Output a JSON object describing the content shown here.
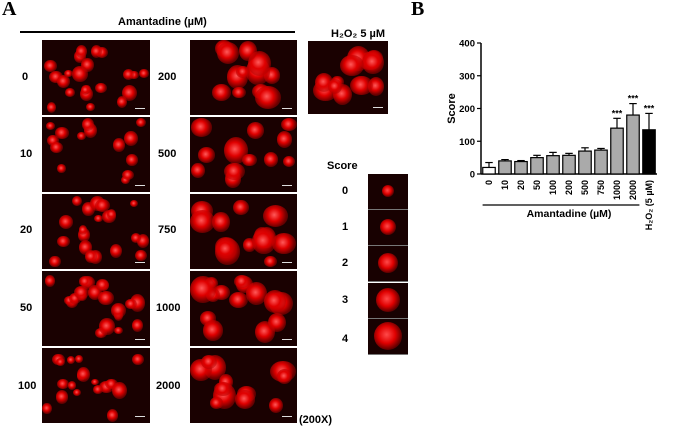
{
  "panel_a": {
    "letter": "A",
    "header": "Amantadine (µM)",
    "h2o2_label": "H₂O₂ 5 µM",
    "col1_doses": [
      "0",
      "10",
      "20",
      "50",
      "100"
    ],
    "col2_doses": [
      "200",
      "500",
      "750",
      "1000",
      "2000"
    ],
    "score_title": "Score",
    "score_levels": [
      "0",
      "1",
      "2",
      "3",
      "4"
    ],
    "magnification": "(200X)"
  },
  "panel_b": {
    "letter": "B"
  },
  "chart_data": {
    "type": "bar",
    "categories": [
      "0",
      "10",
      "20",
      "50",
      "100",
      "200",
      "500",
      "750",
      "1000",
      "2000",
      "H₂O₂ (5 µM)"
    ],
    "values": [
      20,
      40,
      38,
      50,
      56,
      57,
      70,
      73,
      140,
      180,
      135
    ],
    "errors": [
      15,
      4,
      3,
      7,
      10,
      6,
      10,
      5,
      30,
      35,
      50
    ],
    "annotations": [
      "",
      "",
      "",
      "",
      "",
      "",
      "",
      "",
      "***",
      "***",
      "***"
    ],
    "bar_colors": [
      "#ffffff",
      "#aaaaaa",
      "#aaaaaa",
      "#aaaaaa",
      "#aaaaaa",
      "#aaaaaa",
      "#aaaaaa",
      "#aaaaaa",
      "#aaaaaa",
      "#aaaaaa",
      "#000000"
    ],
    "ylabel": "Score",
    "xlabel": "Amantadine (µM)",
    "ylim": [
      0,
      400
    ],
    "yticks": [
      "0",
      "100",
      "200",
      "300",
      "400"
    ],
    "grid": false
  }
}
